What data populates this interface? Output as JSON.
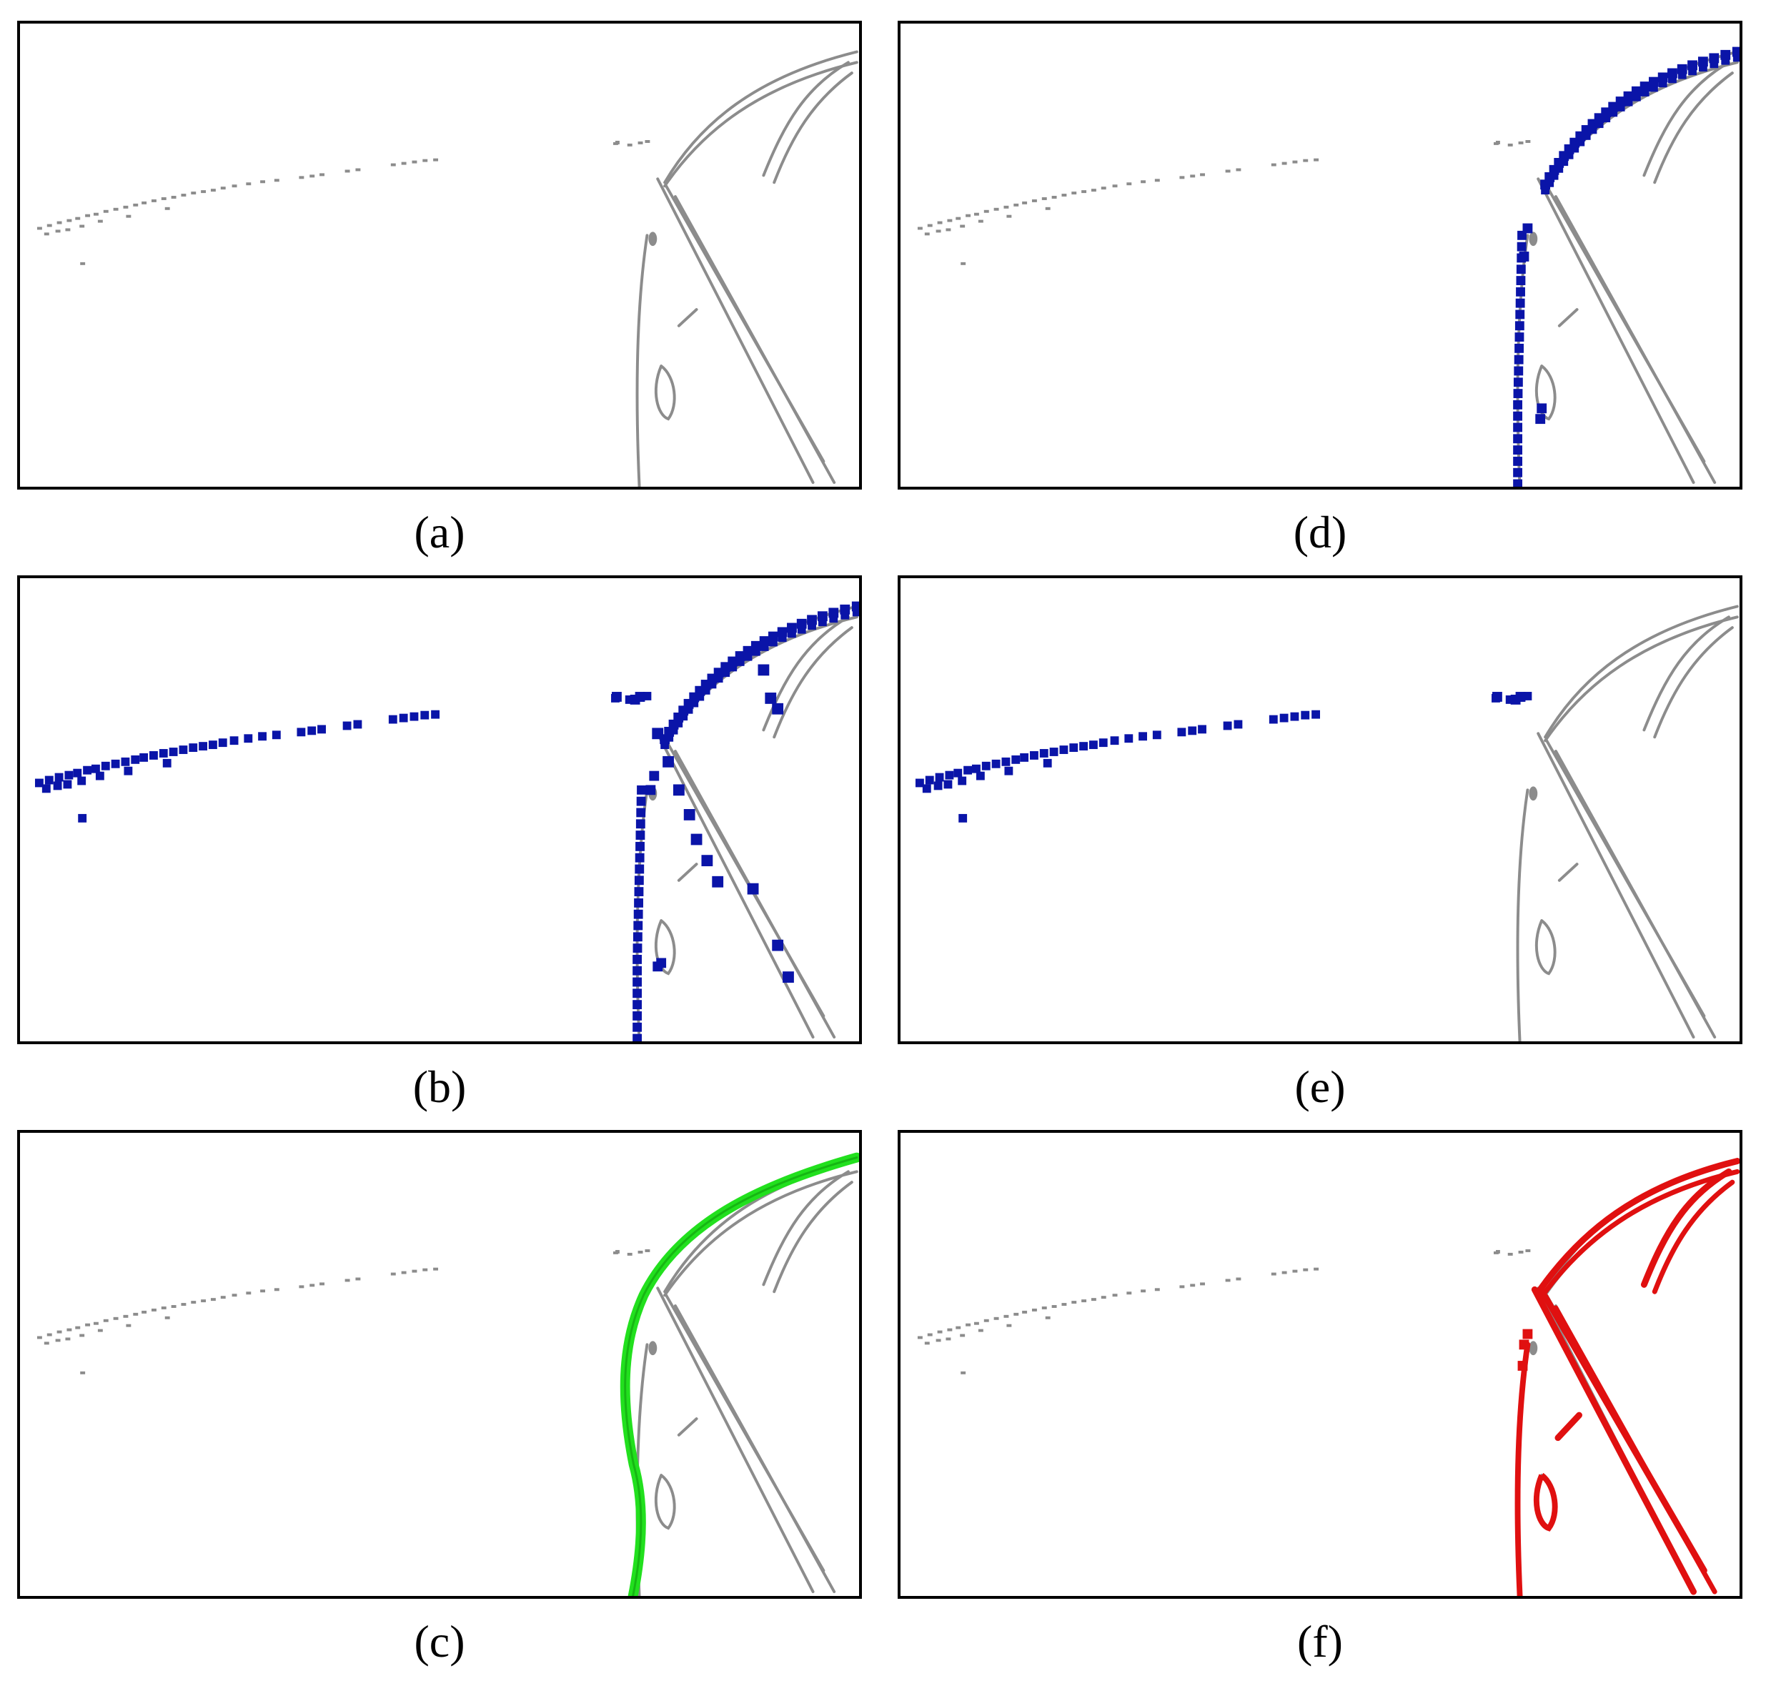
{
  "figure": {
    "panels": [
      {
        "id": "a",
        "label": "(a)",
        "overlay": "none"
      },
      {
        "id": "b",
        "label": "(b)",
        "overlay": "blue-points-all"
      },
      {
        "id": "c",
        "label": "(c)",
        "overlay": "green-curve"
      },
      {
        "id": "d",
        "label": "(d)",
        "overlay": "blue-points-car-roof"
      },
      {
        "id": "e",
        "label": "(e)",
        "overlay": "blue-points-horizon"
      },
      {
        "id": "f",
        "label": "(f)",
        "overlay": "red-structures"
      }
    ],
    "colors": {
      "edges": "#8c8c8c",
      "blue": "#0a14a8",
      "green": "#22e01e",
      "red": "#e01010",
      "border": "#000000"
    }
  }
}
